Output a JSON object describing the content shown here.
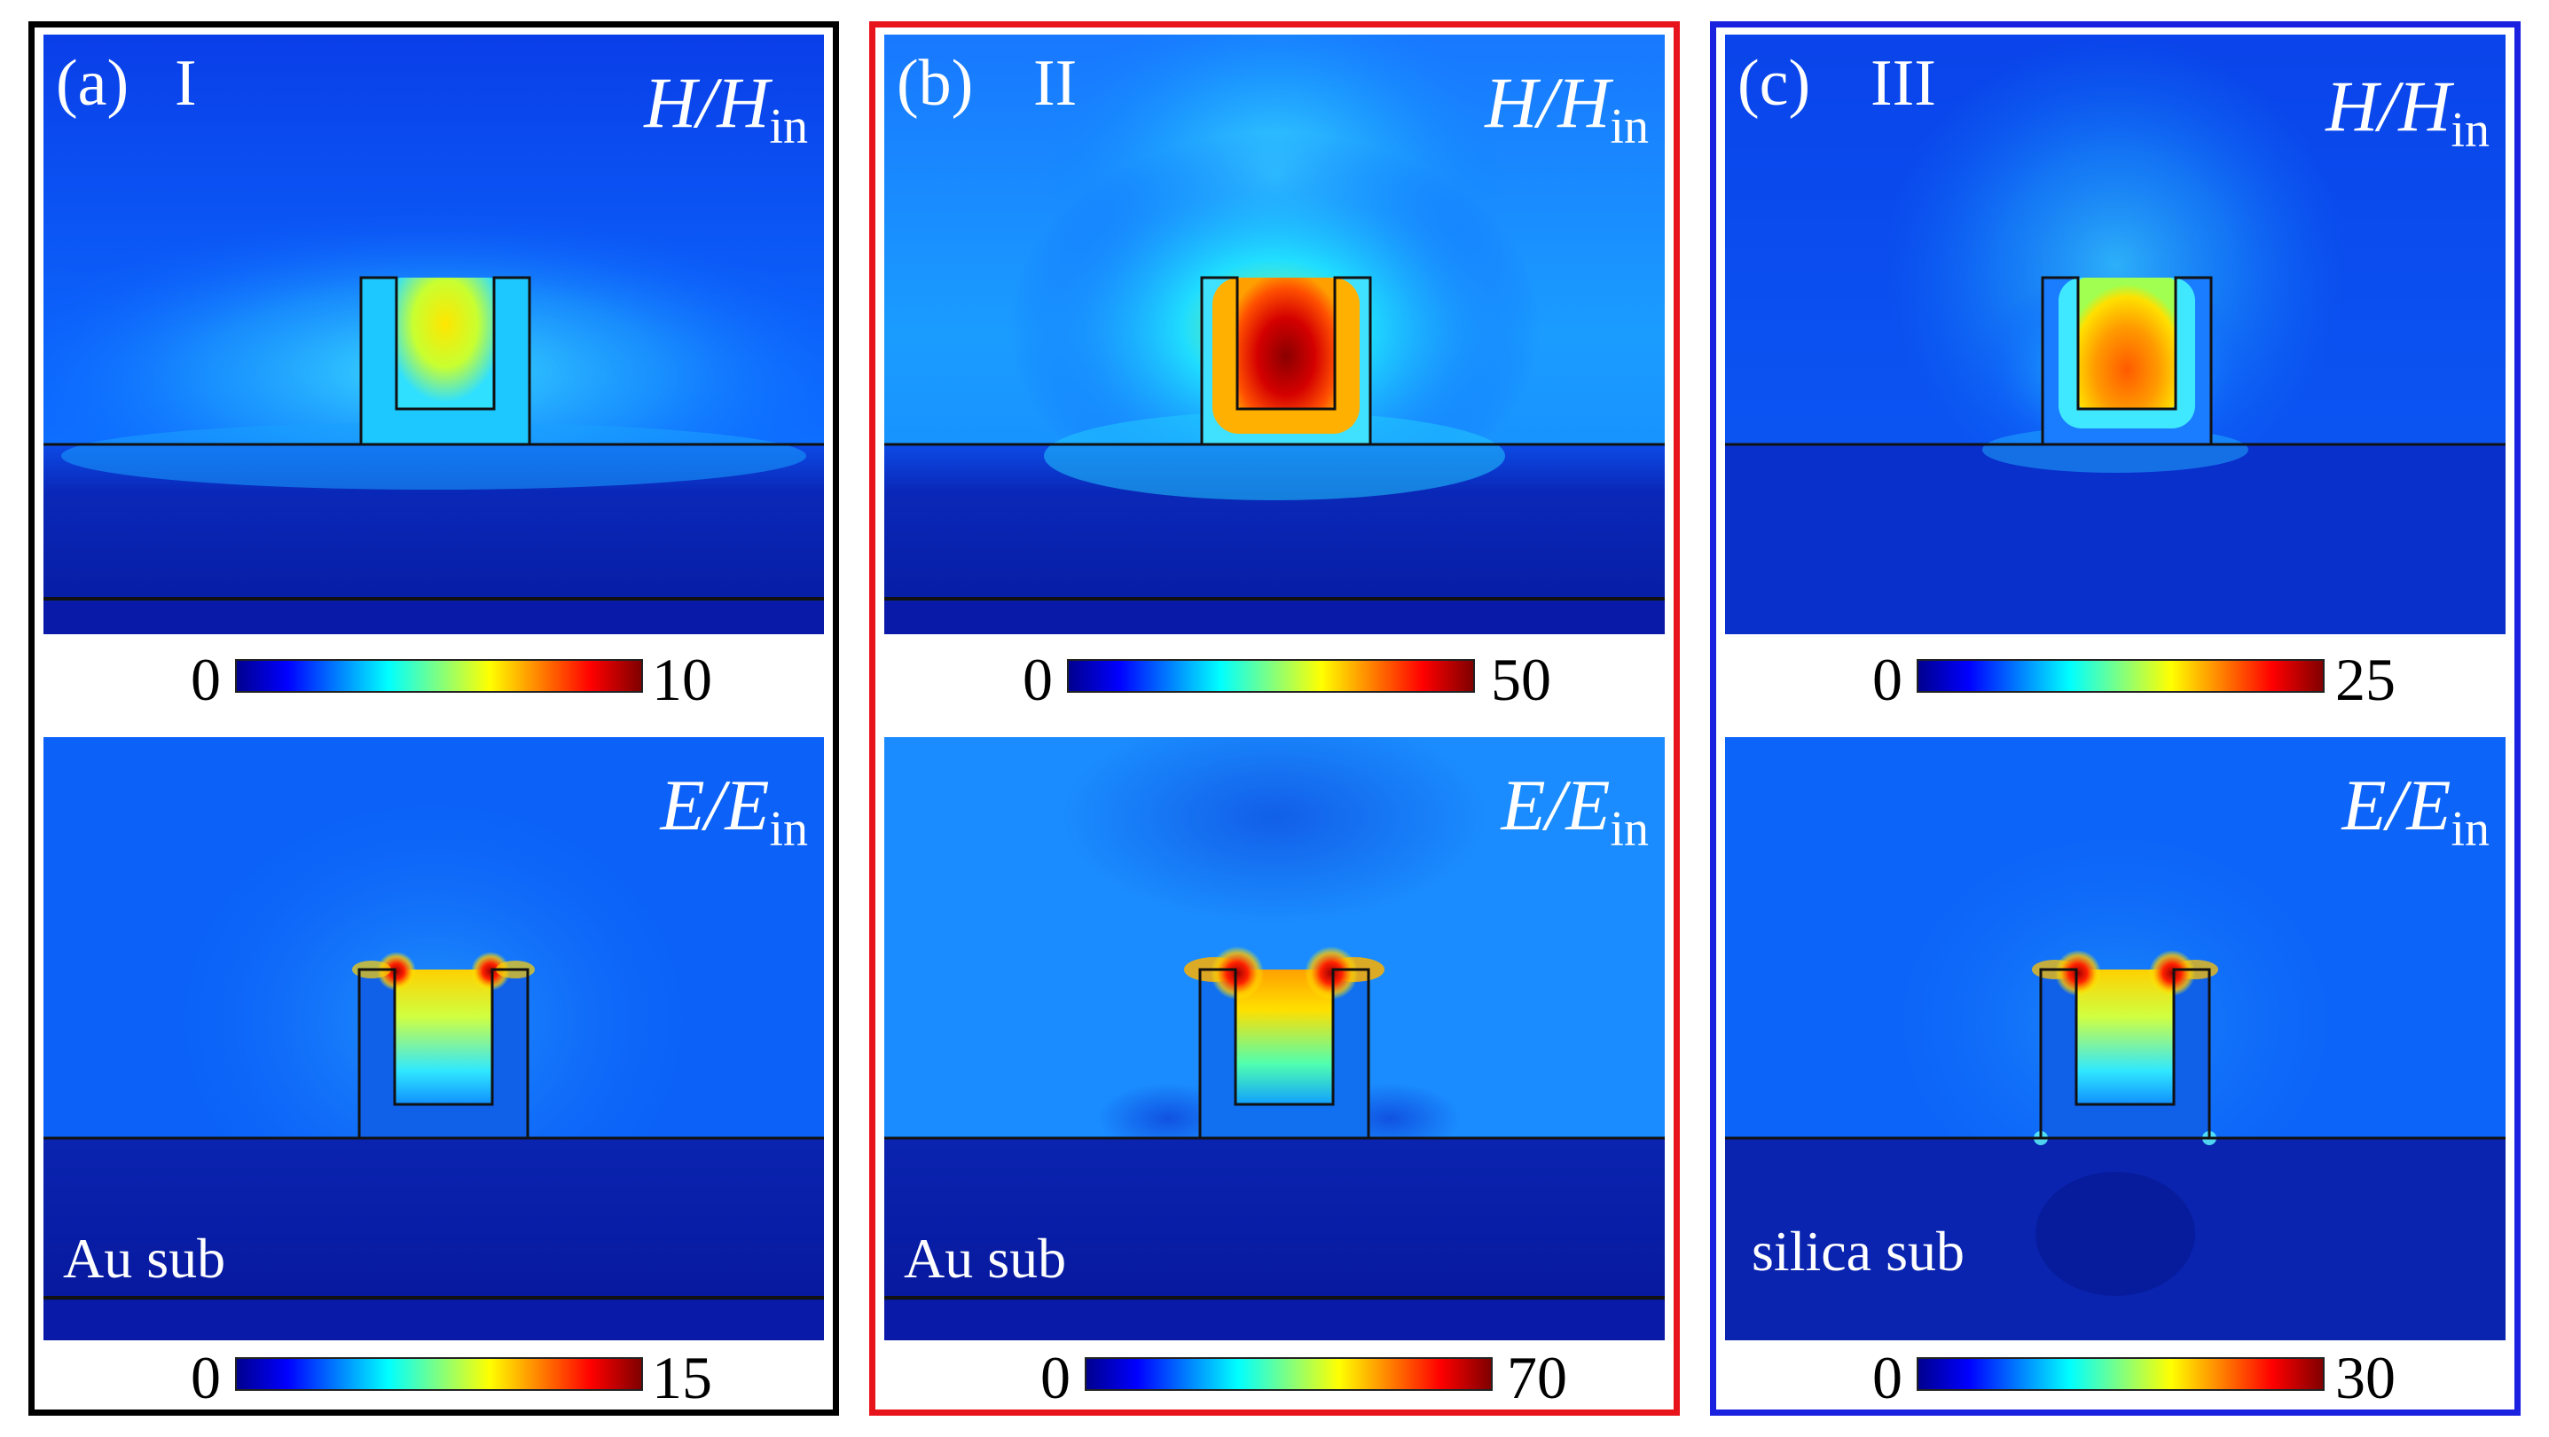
{
  "colors": {
    "frame_a": "#000000",
    "frame_b": "#e8141c",
    "frame_c": "#1a22e0"
  },
  "panels": [
    {
      "letter": "(a)",
      "roman": "I",
      "h_quantity": "H/H",
      "h_sub": "in",
      "e_quantity": "E/E",
      "e_sub": "in",
      "substrate": "Au sub",
      "h_scale": {
        "min": "0",
        "max": "10"
      },
      "e_scale": {
        "min": "0",
        "max": "15"
      }
    },
    {
      "letter": "(b)",
      "roman": "II",
      "h_quantity": "H/H",
      "h_sub": "in",
      "e_quantity": "E/E",
      "e_sub": "in",
      "substrate": "Au sub",
      "h_scale": {
        "min": "0",
        "max": "50"
      },
      "e_scale": {
        "min": "0",
        "max": "70"
      }
    },
    {
      "letter": "(c)",
      "roman": "III",
      "h_quantity": "H/H",
      "h_sub": "in",
      "e_quantity": "E/E",
      "e_sub": "in",
      "substrate": "silica sub",
      "h_scale": {
        "min": "0",
        "max": "25"
      },
      "e_scale": {
        "min": "0",
        "max": "30"
      }
    }
  ]
}
